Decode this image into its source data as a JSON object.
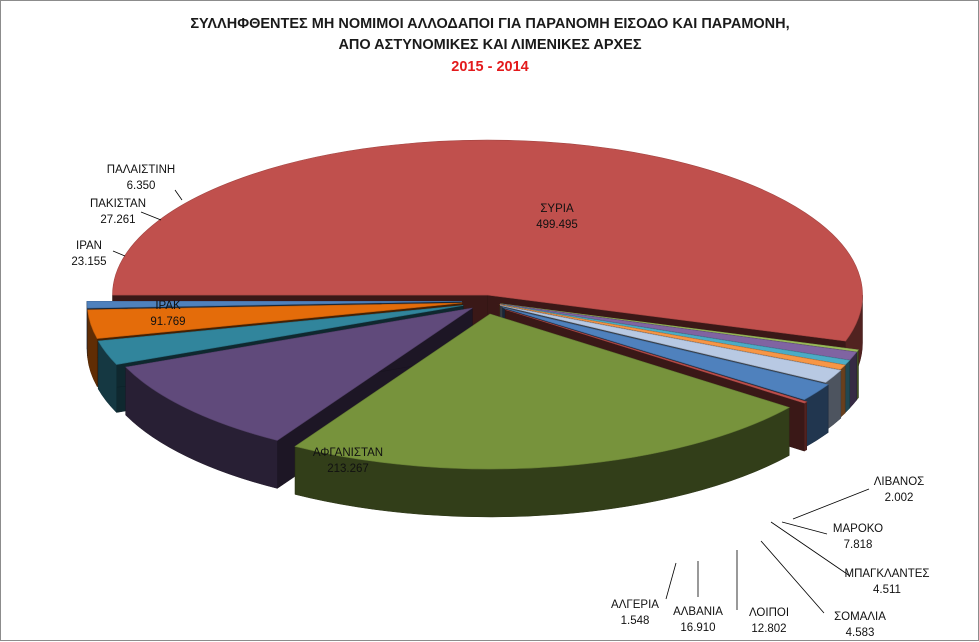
{
  "chart_data": {
    "type": "pie",
    "style": "3d-exploded",
    "title": [
      "ΣΥΛΛΗΦΘΕΝΤΕΣ ΜΗ ΝΟΜΙΜΟΙ ΑΛΛΟΔΑΠΟΙ ΓΙΑ ΠΑΡΑΝΟΜΗ ΕΙΣΟΔΟ ΚΑΙ ΠΑΡΑΜΟΝΗ,",
      "ΑΠΟ ΑΣΤΥΝΟΜΙΚΕΣ ΚΑΙ ΛΙΜΕΝΙΚΕΣ ΑΡΧΕΣ"
    ],
    "subtitle": "2015 - 2014",
    "slices": [
      {
        "label": "ΣΥΡΙΑ",
        "display": "499.495",
        "value": 499495,
        "color": "#c0504d"
      },
      {
        "label": "ΛΙΒΑΝΟΣ",
        "display": "2.002",
        "value": 2002,
        "color": "#9bbb59"
      },
      {
        "label": "ΜΑΡΟΚΟ",
        "display": "7.818",
        "value": 7818,
        "color": "#8064a2"
      },
      {
        "label": "ΜΠΑΓΚΛΑΝΤΕΣ",
        "display": "4.511",
        "value": 4511,
        "color": "#4bacc6"
      },
      {
        "label": "ΣΟΜΑΛΙΑ",
        "display": "4.583",
        "value": 4583,
        "color": "#f79646"
      },
      {
        "label": "ΛΟΙΠΟΙ",
        "display": "12.802",
        "value": 12802,
        "color": "#b8c9e3"
      },
      {
        "label": "ΑΛΒΑΝΙΑ",
        "display": "16.910",
        "value": 16910,
        "color": "#4f81bd"
      },
      {
        "label": "ΑΛΓΕΡΙΑ",
        "display": "1.548",
        "value": 1548,
        "color": "#c0504d"
      },
      {
        "label": "ΑΦΓΑΝΙΣΤΑΝ",
        "display": "213.267",
        "value": 213267,
        "color": "#77933c"
      },
      {
        "label": "ΙΡΑΚ",
        "display": "91.769",
        "value": 91769,
        "color": "#604a7b"
      },
      {
        "label": "ΙΡΑΝ",
        "display": "23.155",
        "value": 23155,
        "color": "#31859c"
      },
      {
        "label": "ΠΑΚΙΣΤΑΝ",
        "display": "27.261",
        "value": 27261,
        "color": "#e46c0a"
      },
      {
        "label": "ΠΑΛΑΙΣΤΙΝΗ",
        "display": "6.350",
        "value": 6350,
        "color": "#4f81bd"
      }
    ]
  }
}
